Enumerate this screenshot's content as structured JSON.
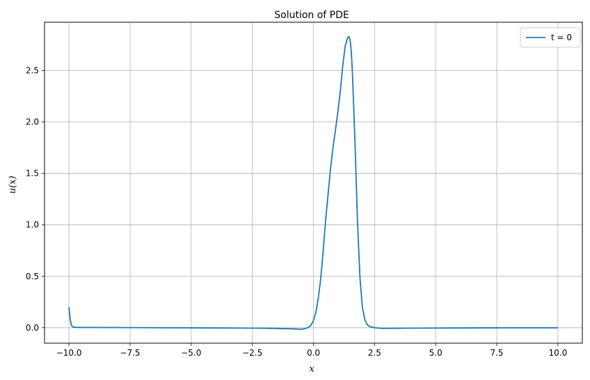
{
  "chart_data": {
    "type": "line",
    "title": "Solution of PDE",
    "xlabel": "x",
    "ylabel": "u(x)",
    "xlim": [
      -11.0,
      11.0
    ],
    "ylim": [
      -0.15,
      2.97
    ],
    "xticks": [
      -10.0,
      -7.5,
      -5.0,
      -2.5,
      0.0,
      2.5,
      5.0,
      7.5,
      10.0
    ],
    "xtick_labels": [
      "−10.0",
      "−7.5",
      "−5.0",
      "−2.5",
      "0.0",
      "2.5",
      "5.0",
      "7.5",
      "10.0"
    ],
    "yticks": [
      0.0,
      0.5,
      1.0,
      1.5,
      2.0,
      2.5
    ],
    "ytick_labels": [
      "0.0",
      "0.5",
      "1.0",
      "1.5",
      "2.0",
      "2.5"
    ],
    "grid": true,
    "legend_position": "top-right",
    "color": "#1f77b4",
    "series": [
      {
        "name": "t = 0",
        "x": [
          -10.0,
          -9.95,
          -9.9,
          -9.85,
          -9.8,
          -9.7,
          -9.5,
          -9.0,
          -8.0,
          -7.0,
          -6.0,
          -5.0,
          -4.0,
          -3.0,
          -2.0,
          -1.5,
          -1.0,
          -0.7,
          -0.5,
          -0.4,
          -0.3,
          -0.2,
          -0.1,
          0.0,
          0.1,
          0.2,
          0.3,
          0.4,
          0.5,
          0.6,
          0.7,
          0.8,
          0.9,
          1.0,
          1.1,
          1.2,
          1.3,
          1.4,
          1.45,
          1.5,
          1.55,
          1.6,
          1.7,
          1.8,
          1.9,
          2.0,
          2.1,
          2.2,
          2.3,
          2.5,
          2.8,
          3.0,
          4.0,
          5.0,
          6.0,
          7.0,
          8.0,
          9.0,
          10.0
        ],
        "y": [
          0.2,
          0.08,
          0.025,
          0.01,
          0.006,
          0.004,
          0.003,
          0.003,
          0.002,
          0.001,
          0.0,
          -0.001,
          -0.002,
          -0.003,
          -0.005,
          -0.007,
          -0.01,
          -0.012,
          -0.014,
          -0.012,
          -0.005,
          0.005,
          0.025,
          0.07,
          0.15,
          0.29,
          0.48,
          0.75,
          1.05,
          1.3,
          1.55,
          1.75,
          1.92,
          2.1,
          2.3,
          2.55,
          2.74,
          2.82,
          2.83,
          2.8,
          2.68,
          2.45,
          1.8,
          1.05,
          0.5,
          0.2,
          0.08,
          0.03,
          0.012,
          0.0,
          -0.006,
          -0.006,
          -0.004,
          -0.003,
          -0.002,
          -0.001,
          0.0,
          0.0,
          0.0
        ]
      }
    ]
  }
}
